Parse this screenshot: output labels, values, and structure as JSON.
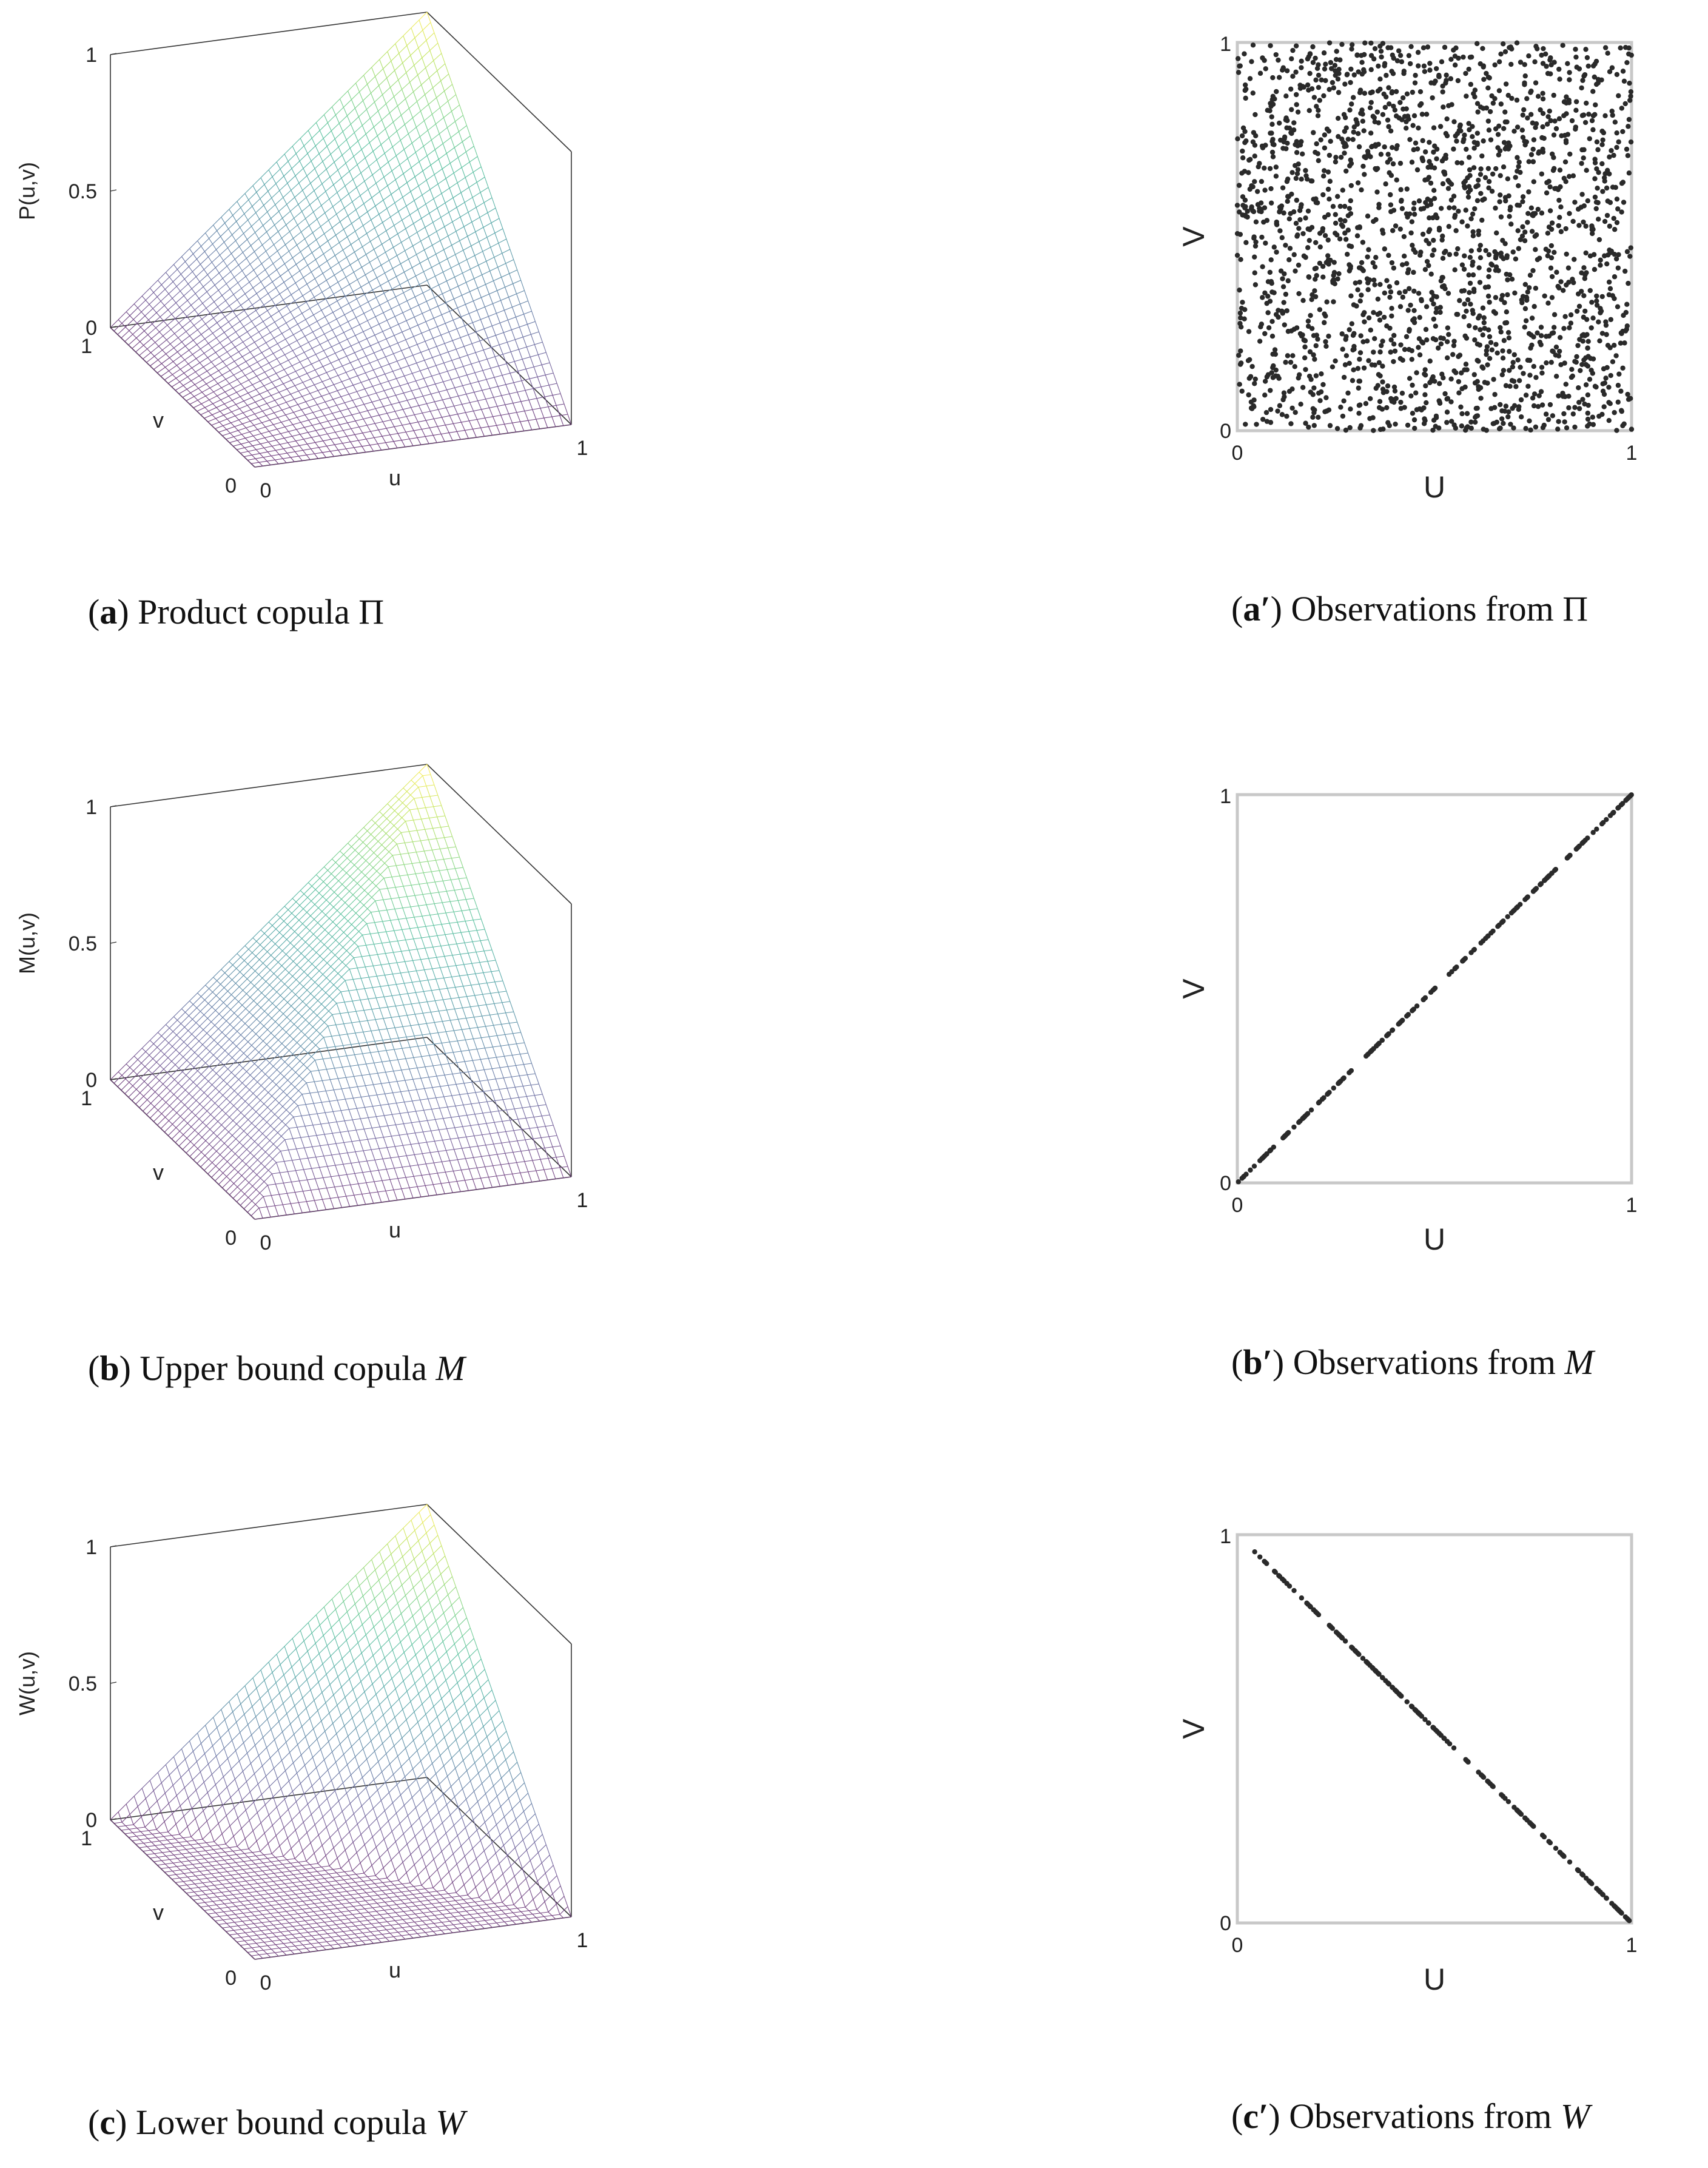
{
  "chart_data": [
    {
      "id": "a",
      "type": "surface3d",
      "function": "product",
      "xlabel": "u",
      "ylabel": "v",
      "zlabel": "P(u,v)",
      "xticks": [
        "0",
        "1"
      ],
      "yticks": [
        "0",
        "1"
      ],
      "zticks": [
        "0",
        "0.5",
        "1"
      ],
      "xlim": [
        0,
        1
      ],
      "ylim": [
        0,
        1
      ],
      "zlim": [
        0,
        1
      ],
      "grid_n": 40,
      "colormap": "viridis",
      "caption": {
        "letter": "a",
        "prime": "",
        "text": " Product copula ",
        "symbol": "Π"
      }
    },
    {
      "id": "ap",
      "type": "scatter",
      "pattern": "uniform",
      "n_points": 2000,
      "xlabel": "U",
      "ylabel": "V",
      "xticks": [
        "0",
        "1"
      ],
      "yticks": [
        "0",
        "1"
      ],
      "xlim": [
        0,
        1
      ],
      "ylim": [
        0,
        1
      ],
      "caption": {
        "letter": "a",
        "prime": "′",
        "text": " Observations from ",
        "symbol": "Π"
      }
    },
    {
      "id": "b",
      "type": "surface3d",
      "function": "min",
      "xlabel": "u",
      "ylabel": "v",
      "zlabel": "M(u,v)",
      "xticks": [
        "0",
        "1"
      ],
      "yticks": [
        "0",
        "1"
      ],
      "zticks": [
        "0",
        "0.5",
        "1"
      ],
      "xlim": [
        0,
        1
      ],
      "ylim": [
        0,
        1
      ],
      "zlim": [
        0,
        1
      ],
      "grid_n": 40,
      "colormap": "viridis",
      "caption": {
        "letter": "b",
        "prime": "",
        "text": " Upper bound copula ",
        "symbol": "M"
      }
    },
    {
      "id": "bp",
      "type": "scatter",
      "pattern": "diagonal",
      "n_points": 200,
      "xlabel": "U",
      "ylabel": "V",
      "xticks": [
        "0",
        "1"
      ],
      "yticks": [
        "0",
        "1"
      ],
      "xlim": [
        0,
        1
      ],
      "ylim": [
        0,
        1
      ],
      "caption": {
        "letter": "b",
        "prime": "′",
        "text": " Observations from ",
        "symbol": "M"
      }
    },
    {
      "id": "c",
      "type": "surface3d",
      "function": "lower_bound",
      "xlabel": "u",
      "ylabel": "v",
      "zlabel": "W(u,v)",
      "xticks": [
        "0",
        "1"
      ],
      "yticks": [
        "0",
        "1"
      ],
      "zticks": [
        "0",
        "0.5",
        "1"
      ],
      "xlim": [
        0,
        1
      ],
      "ylim": [
        0,
        1
      ],
      "zlim": [
        0,
        1
      ],
      "grid_n": 40,
      "colormap": "viridis",
      "caption": {
        "letter": "c",
        "prime": "",
        "text": " Lower bound copula ",
        "symbol": "W"
      }
    },
    {
      "id": "cp",
      "type": "scatter",
      "pattern": "antidiagonal",
      "n_points": 200,
      "xlabel": "U",
      "ylabel": "V",
      "xticks": [
        "0",
        "1"
      ],
      "yticks": [
        "0",
        "1"
      ],
      "xlim": [
        0,
        1
      ],
      "ylim": [
        0,
        1
      ],
      "caption": {
        "letter": "c",
        "prime": "′",
        "text": " Observations from ",
        "symbol": "W"
      }
    }
  ],
  "colors": {
    "mesh_low": "#3b3b8a",
    "mesh_high": "#fde725",
    "scatter_point": "#2a2a2a",
    "frame": "#c8c8c8",
    "box_line": "#333333"
  }
}
